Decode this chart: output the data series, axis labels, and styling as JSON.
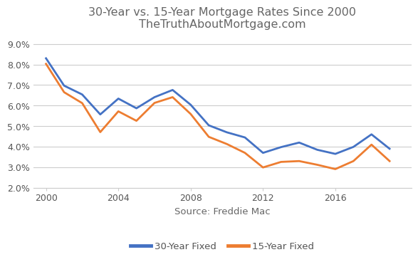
{
  "title_line1": "30-Year vs. 15-Year Mortgage Rates Since 2000",
  "title_line2": "TheTruthAboutMortgage.com",
  "xlabel": "Source: Freddie Mac",
  "ylim": [
    0.02,
    0.094
  ],
  "yticks": [
    0.02,
    0.03,
    0.04,
    0.05,
    0.06,
    0.07,
    0.08,
    0.09
  ],
  "ytick_labels": [
    "2.0%",
    "3.0%",
    "4.0%",
    "5.0%",
    "6.0%",
    "7.0%",
    "8.0%",
    "9.0%"
  ],
  "xticks": [
    2000,
    2004,
    2008,
    2012,
    2016
  ],
  "xlim_left": 1999.3,
  "xlim_right": 2020.2,
  "years_30": [
    2000,
    2001,
    2002,
    2003,
    2004,
    2005,
    2006,
    2007,
    2008,
    2009,
    2010,
    2011,
    2012,
    2013,
    2014,
    2015,
    2016,
    2017,
    2018,
    2019
  ],
  "rates_30": [
    0.083,
    0.0697,
    0.0654,
    0.0557,
    0.0634,
    0.0587,
    0.0641,
    0.0676,
    0.0604,
    0.0504,
    0.047,
    0.0445,
    0.037,
    0.0398,
    0.042,
    0.0385,
    0.0365,
    0.0399,
    0.046,
    0.039
  ],
  "years_15": [
    2000,
    2001,
    2002,
    2003,
    2004,
    2005,
    2006,
    2007,
    2008,
    2009,
    2010,
    2011,
    2012,
    2013,
    2014,
    2015,
    2016,
    2017,
    2018,
    2019
  ],
  "rates_15": [
    0.0803,
    0.0665,
    0.0612,
    0.0471,
    0.0572,
    0.0526,
    0.0613,
    0.0641,
    0.0559,
    0.0448,
    0.0413,
    0.037,
    0.0299,
    0.0326,
    0.033,
    0.0312,
    0.0291,
    0.033,
    0.041,
    0.033
  ],
  "color_30": "#4472c4",
  "color_15": "#ed7d31",
  "line_width": 2.0,
  "legend_30": "30-Year Fixed",
  "legend_15": "15-Year Fixed",
  "background_color": "#ffffff",
  "grid_color": "#cccccc",
  "title_color": "#666666",
  "title_fontsize": 11.5,
  "tick_fontsize": 9,
  "xlabel_fontsize": 9.5,
  "legend_fontsize": 9.5
}
